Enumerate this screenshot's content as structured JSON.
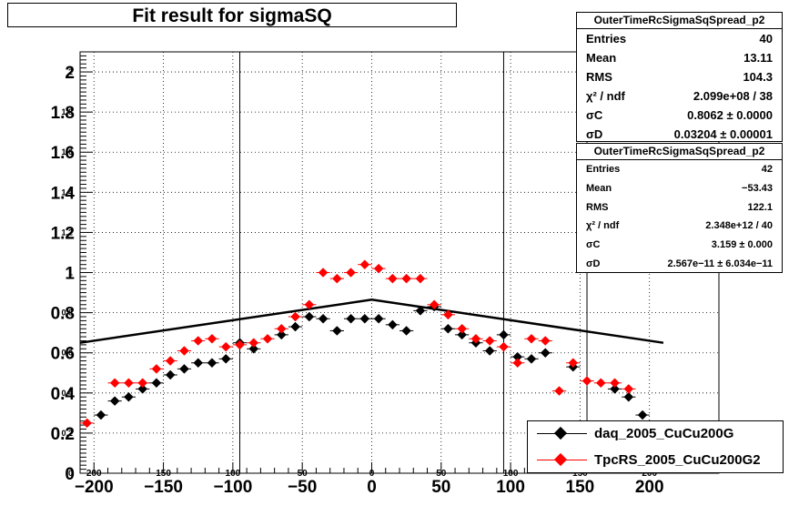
{
  "chart_data": {
    "type": "scatter",
    "title": "Fit result for sigmaSQ",
    "xlim": [
      -210,
      250
    ],
    "ylim": [
      0,
      2.1
    ],
    "grid": true,
    "x_ticks": [
      -200,
      -150,
      -100,
      -50,
      0,
      50,
      100,
      150,
      200
    ],
    "y_ticks": [
      0,
      0.2,
      0.4,
      0.6,
      0.8,
      1,
      1.2,
      1.4,
      1.6,
      1.8,
      2
    ],
    "x_tick_labels": [
      "−200",
      "−150",
      "−100",
      "−50",
      "0",
      "50",
      "100",
      "150",
      "200"
    ],
    "y_tick_labels": [
      "0",
      "0.2",
      "0.4",
      "0.6",
      "0.8",
      "1",
      "1.2",
      "1.4",
      "1.6",
      "1.8",
      "2"
    ],
    "inner_x_tick_labels": [
      "200",
      "150",
      "100",
      "50",
      "0",
      "50",
      "100",
      "150",
      "200"
    ],
    "inner_y_tick_labels": [
      "0",
      "0.2",
      "0.4",
      "0.6",
      "0.8",
      "1",
      "1.2",
      "1.4",
      "1.6",
      "1.8",
      "2"
    ],
    "vertical_lines": [
      -95,
      95,
      155
    ],
    "series": [
      {
        "name": "daq_2005_CuCu200G",
        "color": "#000000",
        "x": [
          -195,
          -185,
          -175,
          -165,
          -155,
          -145,
          -135,
          -125,
          -115,
          -105,
          -95,
          -85,
          -65,
          -55,
          -45,
          -35,
          -25,
          -15,
          -5,
          5,
          15,
          25,
          35,
          45,
          55,
          65,
          75,
          85,
          95,
          105,
          115,
          125,
          145,
          175,
          185,
          195
        ],
        "y": [
          0.29,
          0.36,
          0.38,
          0.42,
          0.45,
          0.49,
          0.52,
          0.55,
          0.55,
          0.57,
          0.65,
          0.62,
          0.69,
          0.73,
          0.78,
          0.77,
          0.71,
          0.77,
          0.77,
          0.77,
          0.74,
          0.71,
          0.81,
          0.83,
          0.72,
          0.69,
          0.65,
          0.61,
          0.69,
          0.58,
          0.57,
          0.6,
          0.53,
          0.42,
          0.38,
          0.29
        ]
      },
      {
        "name": "TpcRS_2005_CuCu200G2",
        "color": "#ff0000",
        "x": [
          -205,
          -185,
          -175,
          -165,
          -155,
          -145,
          -135,
          -125,
          -115,
          -105,
          -95,
          -85,
          -75,
          -65,
          -55,
          -45,
          -35,
          -25,
          -15,
          -5,
          5,
          15,
          25,
          35,
          45,
          55,
          65,
          75,
          85,
          95,
          105,
          115,
          125,
          135,
          145,
          155,
          165,
          175,
          185
        ],
        "y": [
          0.25,
          0.45,
          0.45,
          0.45,
          0.52,
          0.56,
          0.61,
          0.66,
          0.67,
          0.63,
          0.64,
          0.65,
          0.67,
          0.72,
          0.78,
          0.84,
          1.0,
          0.97,
          1.0,
          1.04,
          1.02,
          0.97,
          0.97,
          0.97,
          0.84,
          0.79,
          0.72,
          0.67,
          0.66,
          0.63,
          0.55,
          0.67,
          0.66,
          0.41,
          0.55,
          0.46,
          0.45,
          0.45,
          0.42
        ]
      }
    ],
    "fit_curve": {
      "color": "#000000",
      "x": [
        -210,
        0,
        210
      ],
      "y": [
        0.65,
        0.865,
        0.65
      ]
    }
  },
  "stats": [
    {
      "name": "OuterTimeRcSigmaSqSpread_p2",
      "rows": [
        {
          "label": "Entries",
          "value": "40"
        },
        {
          "label": "Mean",
          "value": "13.11"
        },
        {
          "label": "RMS",
          "value": "104.3"
        },
        {
          "label": "χ² / ndf",
          "value": "2.099e+08 / 38"
        },
        {
          "label": "σC",
          "value": "0.8062 ± 0.0000"
        },
        {
          "label": "σD",
          "value": "0.03204 ± 0.00001"
        }
      ]
    },
    {
      "name": "OuterTimeRcSigmaSqSpread_p2",
      "rows": [
        {
          "label": "Entries",
          "value": "42"
        },
        {
          "label": "Mean",
          "value": "−53.43"
        },
        {
          "label": "RMS",
          "value": "122.1"
        },
        {
          "label": "χ² / ndf",
          "value": "2.348e+12 / 40"
        },
        {
          "label": "σC",
          "value": "3.159 ± 0.000"
        },
        {
          "label": "σD",
          "value": "2.567e−11 ± 6.034e−11"
        }
      ]
    }
  ]
}
